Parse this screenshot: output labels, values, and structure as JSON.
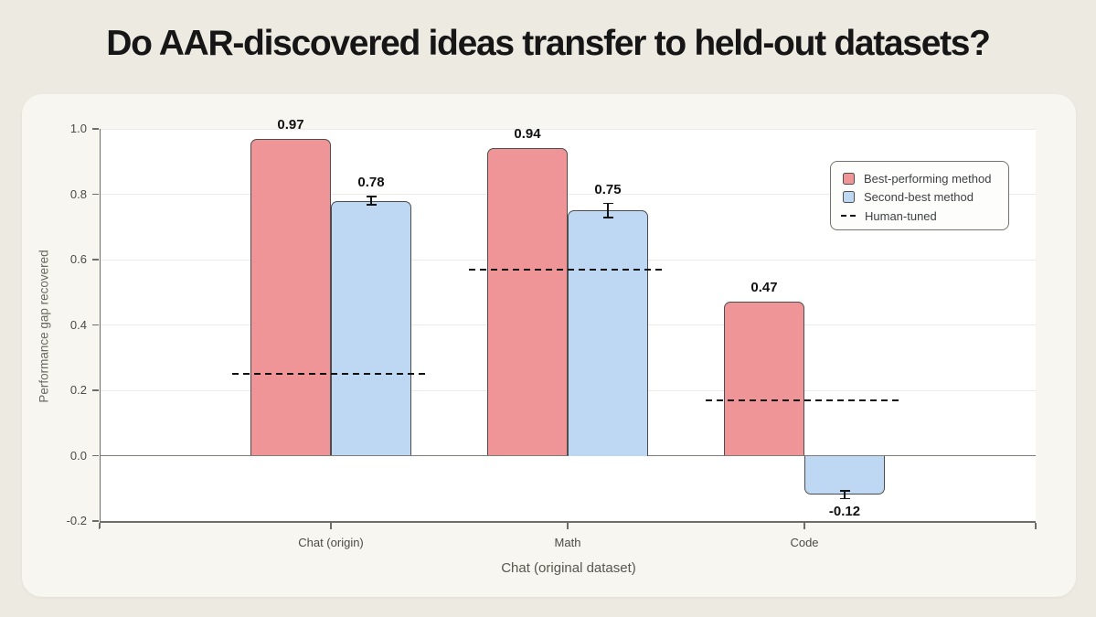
{
  "page": {
    "background_color": "#edeae1",
    "panel_color": "#f8f6f0",
    "title_color": "#161616"
  },
  "chart_data": {
    "type": "bar",
    "title": "Do AAR-discovered ideas transfer to held-out datasets?",
    "categories": [
      "Chat (origin)",
      "Math",
      "Code"
    ],
    "series": [
      {
        "name": "Best-performing method",
        "color": "#f09597",
        "values": [
          0.97,
          0.94,
          0.47
        ],
        "errors": null
      },
      {
        "name": "Second-best method",
        "color": "#bed8f3",
        "values": [
          0.78,
          0.75,
          -0.12
        ],
        "errors": [
          0.013,
          0.022,
          0.012
        ]
      }
    ],
    "human_tuned": {
      "name": "Human-tuned",
      "style": "dashed",
      "color": "#111111",
      "values": [
        0.25,
        0.57,
        0.17
      ]
    },
    "xlabel": "Chat (original dataset)",
    "ylabel": "Performance gap recovered",
    "ylim": [
      -0.2,
      1.0
    ],
    "ytick_step": 0.2,
    "ytick_labels": [
      "-0.2",
      "0.0",
      "0.2",
      "0.4",
      "0.6",
      "0.8",
      "1.0"
    ],
    "grid": true,
    "legend_position": "upper right",
    "bar_edge_color": "#4d4d4d",
    "axis_color": "#6e6d68",
    "zero_line_color": "#7d7c77",
    "grid_color": "#ecebe7",
    "tick_label_color": "#4c4b45"
  }
}
